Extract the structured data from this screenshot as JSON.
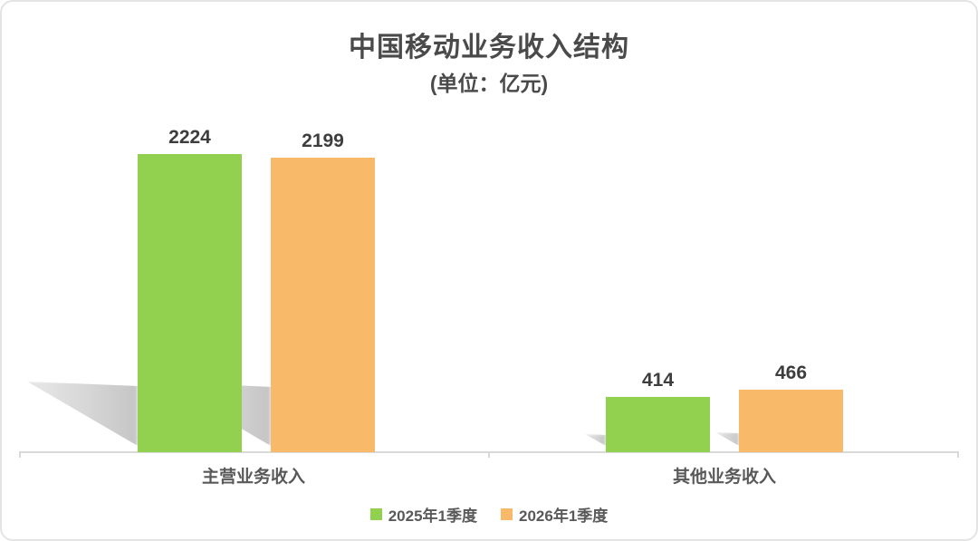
{
  "chart_data": {
    "type": "bar",
    "title": "中国移动业务收入结构",
    "subtitle": "(单位：亿元)",
    "unit": "亿元",
    "categories": [
      "主营业务收入",
      "其他业务收入"
    ],
    "series": [
      {
        "name": "2025年1季度",
        "color": "#92D050",
        "values": [
          2224,
          414
        ]
      },
      {
        "name": "2026年1季度",
        "color": "#F8BA69",
        "values": [
          2199,
          466
        ]
      }
    ],
    "value_labels": [
      [
        "2224",
        "414"
      ],
      [
        "2199",
        "466"
      ]
    ],
    "ylim": [
      0,
      2224
    ],
    "grid": false,
    "legend_position": "bottom",
    "value_labels_shown": true
  },
  "colors": {
    "axis": "#d9d9d9",
    "title_text": "#4a4a4a",
    "value_text": "#3d3d3d",
    "category_text": "#595959",
    "card_border": "#e4e4e4"
  }
}
